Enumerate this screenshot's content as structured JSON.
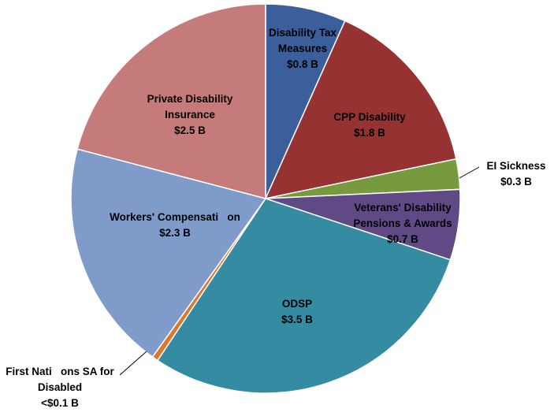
{
  "chart_data": {
    "type": "pie",
    "unit": "B",
    "slices": [
      {
        "name": "Disability Tax Measures",
        "value": 0.8,
        "value_label": "$0.8 B",
        "color": "#3A5F9A",
        "label_lines": [
          "Disability Tax",
          "Measures",
          "$0.8 B"
        ]
      },
      {
        "name": "CPP Disability",
        "value": 1.8,
        "value_label": "$1.8 B",
        "color": "#973233",
        "label_lines": [
          "CPP Disability",
          "$1.8 B"
        ]
      },
      {
        "name": "EI Sickness",
        "value": 0.3,
        "value_label": "$0.3 B",
        "color": "#779A3F",
        "label_lines": [
          "EI Sickness",
          "$0.3 B"
        ]
      },
      {
        "name": "Veterans' Disability Pensions & Awards",
        "value": 0.7,
        "value_label": "$0.7 B",
        "color": "#5F4A86",
        "label_lines": [
          "Veterans' Disability",
          "Pensions & Awards",
          "$0.7 B"
        ]
      },
      {
        "name": "ODSP",
        "value": 3.5,
        "value_label": "$3.5 B",
        "color": "#358BA1",
        "label_lines": [
          "ODSP",
          "$3.5 B"
        ]
      },
      {
        "name": "First Nations SA for Disabled",
        "value": 0.06,
        "value_label": "<$0.1 B",
        "color": "#DB782F",
        "label_lines": [
          "First Nati   ons SA for",
          "Disabled",
          "<$0.1 B"
        ]
      },
      {
        "name": "Workers' Compensation",
        "value": 2.3,
        "value_label": "$2.3 B",
        "color": "#7F9BC9",
        "label_lines": [
          "Workers' Compensati   on",
          "$2.3 B"
        ]
      },
      {
        "name": "Private Disability Insurance",
        "value": 2.5,
        "value_label": "$2.5 B",
        "color": "#C57B7A",
        "label_lines": [
          "Private Disability",
          "Insurance",
          "$2.5 B"
        ]
      }
    ]
  }
}
